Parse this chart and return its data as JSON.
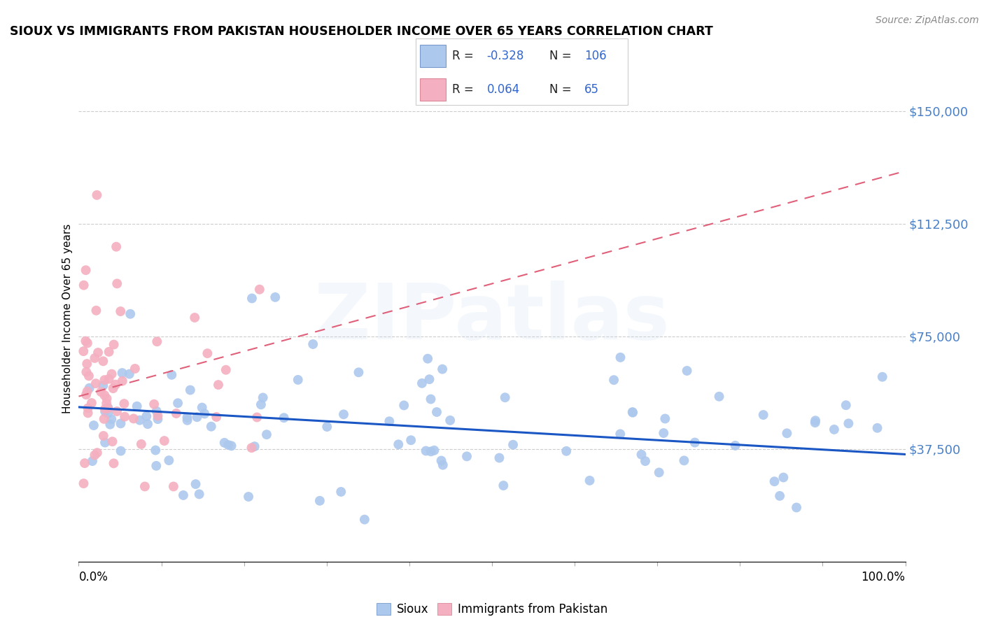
{
  "title": "SIOUX VS IMMIGRANTS FROM PAKISTAN HOUSEHOLDER INCOME OVER 65 YEARS CORRELATION CHART",
  "source": "Source: ZipAtlas.com",
  "ylabel": "Householder Income Over 65 years",
  "yticks": [
    0,
    37500,
    75000,
    112500,
    150000
  ],
  "ytick_labels": [
    "",
    "$37,500",
    "$75,000",
    "$112,500",
    "$150,000"
  ],
  "xmin": 0.0,
  "xmax": 1.0,
  "ymin": 0,
  "ymax": 162000,
  "sioux_R": -0.328,
  "sioux_N": 106,
  "pak_R": 0.064,
  "pak_N": 65,
  "sioux_color": "#adc8ed",
  "pak_color": "#f4afc0",
  "sioux_line_color": "#1a56c4",
  "pak_line_color": "#e0607a",
  "watermark": "ZIPatlas",
  "watermark_color_r": 0.78,
  "watermark_color_g": 0.86,
  "watermark_color_b": 0.94,
  "legend_sioux_label": "Sioux",
  "legend_pak_label": "Immigrants from Pakistan",
  "title_fontsize": 12.5,
  "source_fontsize": 10,
  "ylabel_fontsize": 11,
  "ytick_fontsize": 13,
  "legend_fontsize": 13
}
